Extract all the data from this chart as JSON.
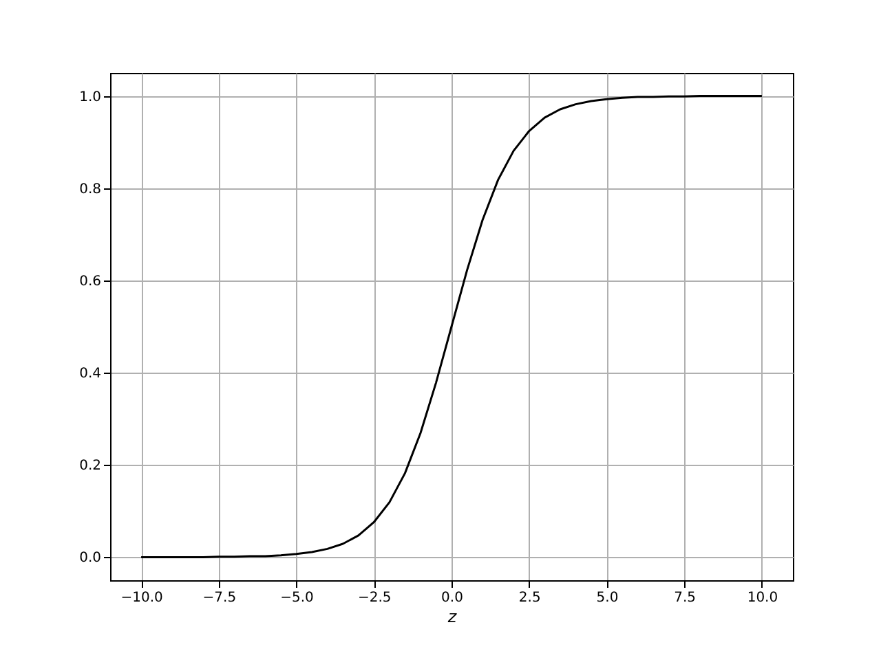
{
  "chart_data": {
    "type": "line",
    "xlabel": "z",
    "x": [
      -10,
      -9.5,
      -9,
      -8.5,
      -8,
      -7.5,
      -7,
      -6.5,
      -6,
      -5.5,
      -5,
      -4.5,
      -4,
      -3.5,
      -3,
      -2.5,
      -2,
      -1.5,
      -1,
      -0.5,
      0,
      0.5,
      1,
      1.5,
      2,
      2.5,
      3,
      3.5,
      4,
      4.5,
      5,
      5.5,
      6,
      6.5,
      7,
      7.5,
      8,
      8.5,
      9,
      9.5,
      10
    ],
    "series": [
      {
        "color": "#000000",
        "values": [
          0.0,
          0.0,
          0.0,
          0.0,
          0.0,
          0.001,
          0.001,
          0.002,
          0.002,
          0.004,
          0.007,
          0.011,
          0.018,
          0.029,
          0.047,
          0.076,
          0.119,
          0.182,
          0.269,
          0.378,
          0.5,
          0.622,
          0.731,
          0.818,
          0.881,
          0.924,
          0.953,
          0.971,
          0.982,
          0.989,
          0.993,
          0.996,
          0.998,
          0.998,
          0.999,
          0.999,
          1.0,
          1.0,
          1.0,
          1.0,
          1.0
        ]
      }
    ],
    "xlim": [
      -11,
      11
    ],
    "xticks": [
      {
        "value": -10,
        "label": "−10.0"
      },
      {
        "value": -7.5,
        "label": "−7.5"
      },
      {
        "value": -5,
        "label": "−5.0"
      },
      {
        "value": -2.5,
        "label": "−2.5"
      },
      {
        "value": 0,
        "label": "0.0"
      },
      {
        "value": 2.5,
        "label": "2.5"
      },
      {
        "value": 5,
        "label": "5.0"
      },
      {
        "value": 7.5,
        "label": "7.5"
      },
      {
        "value": 10,
        "label": "10.0"
      }
    ],
    "ylim": [
      -0.05,
      1.05
    ],
    "yticks": [
      {
        "value": 0,
        "label": "0.0"
      },
      0.2,
      0.4,
      0.6,
      0.8,
      {
        "value": 1,
        "label": "1.0"
      }
    ],
    "grid": true,
    "marker": "none",
    "line_style": "solid"
  }
}
